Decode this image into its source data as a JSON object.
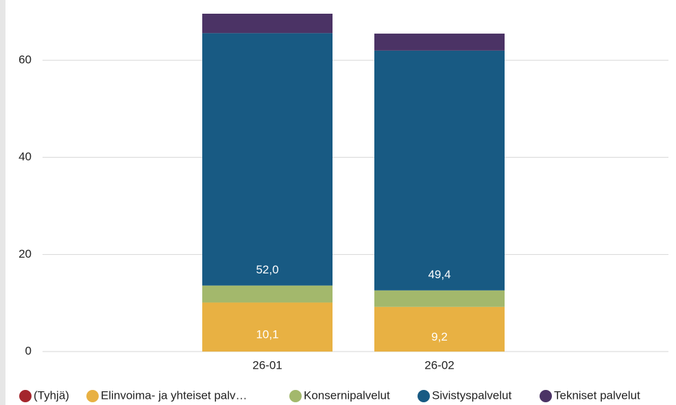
{
  "chart_data": {
    "type": "stacked_bar",
    "categories": [
      "26-01",
      "26-02"
    ],
    "series": [
      {
        "name": "(Tyhjä)",
        "color": "#a4262c",
        "values": [
          null,
          null
        ]
      },
      {
        "name": "Elinvoima- ja yhteiset palv…",
        "color": "#e8b143",
        "values": [
          10.1,
          9.2
        ],
        "value_labels": [
          "10,1",
          "9,2"
        ]
      },
      {
        "name": "Konsernipalvelut",
        "color": "#a3b86c",
        "values": [
          3.5,
          3.4
        ]
      },
      {
        "name": "Sivistyspalvelut",
        "color": "#185a83",
        "values": [
          52.0,
          49.4
        ],
        "value_labels": [
          "52,0",
          "49,4"
        ]
      },
      {
        "name": "Tekniset palvelut",
        "color": "#4b3365",
        "values": [
          4.0,
          3.5
        ]
      }
    ],
    "ylim": [
      0,
      72
    ],
    "yticks": [
      0,
      20,
      40,
      60
    ],
    "grid": true,
    "legend": "bottom"
  }
}
